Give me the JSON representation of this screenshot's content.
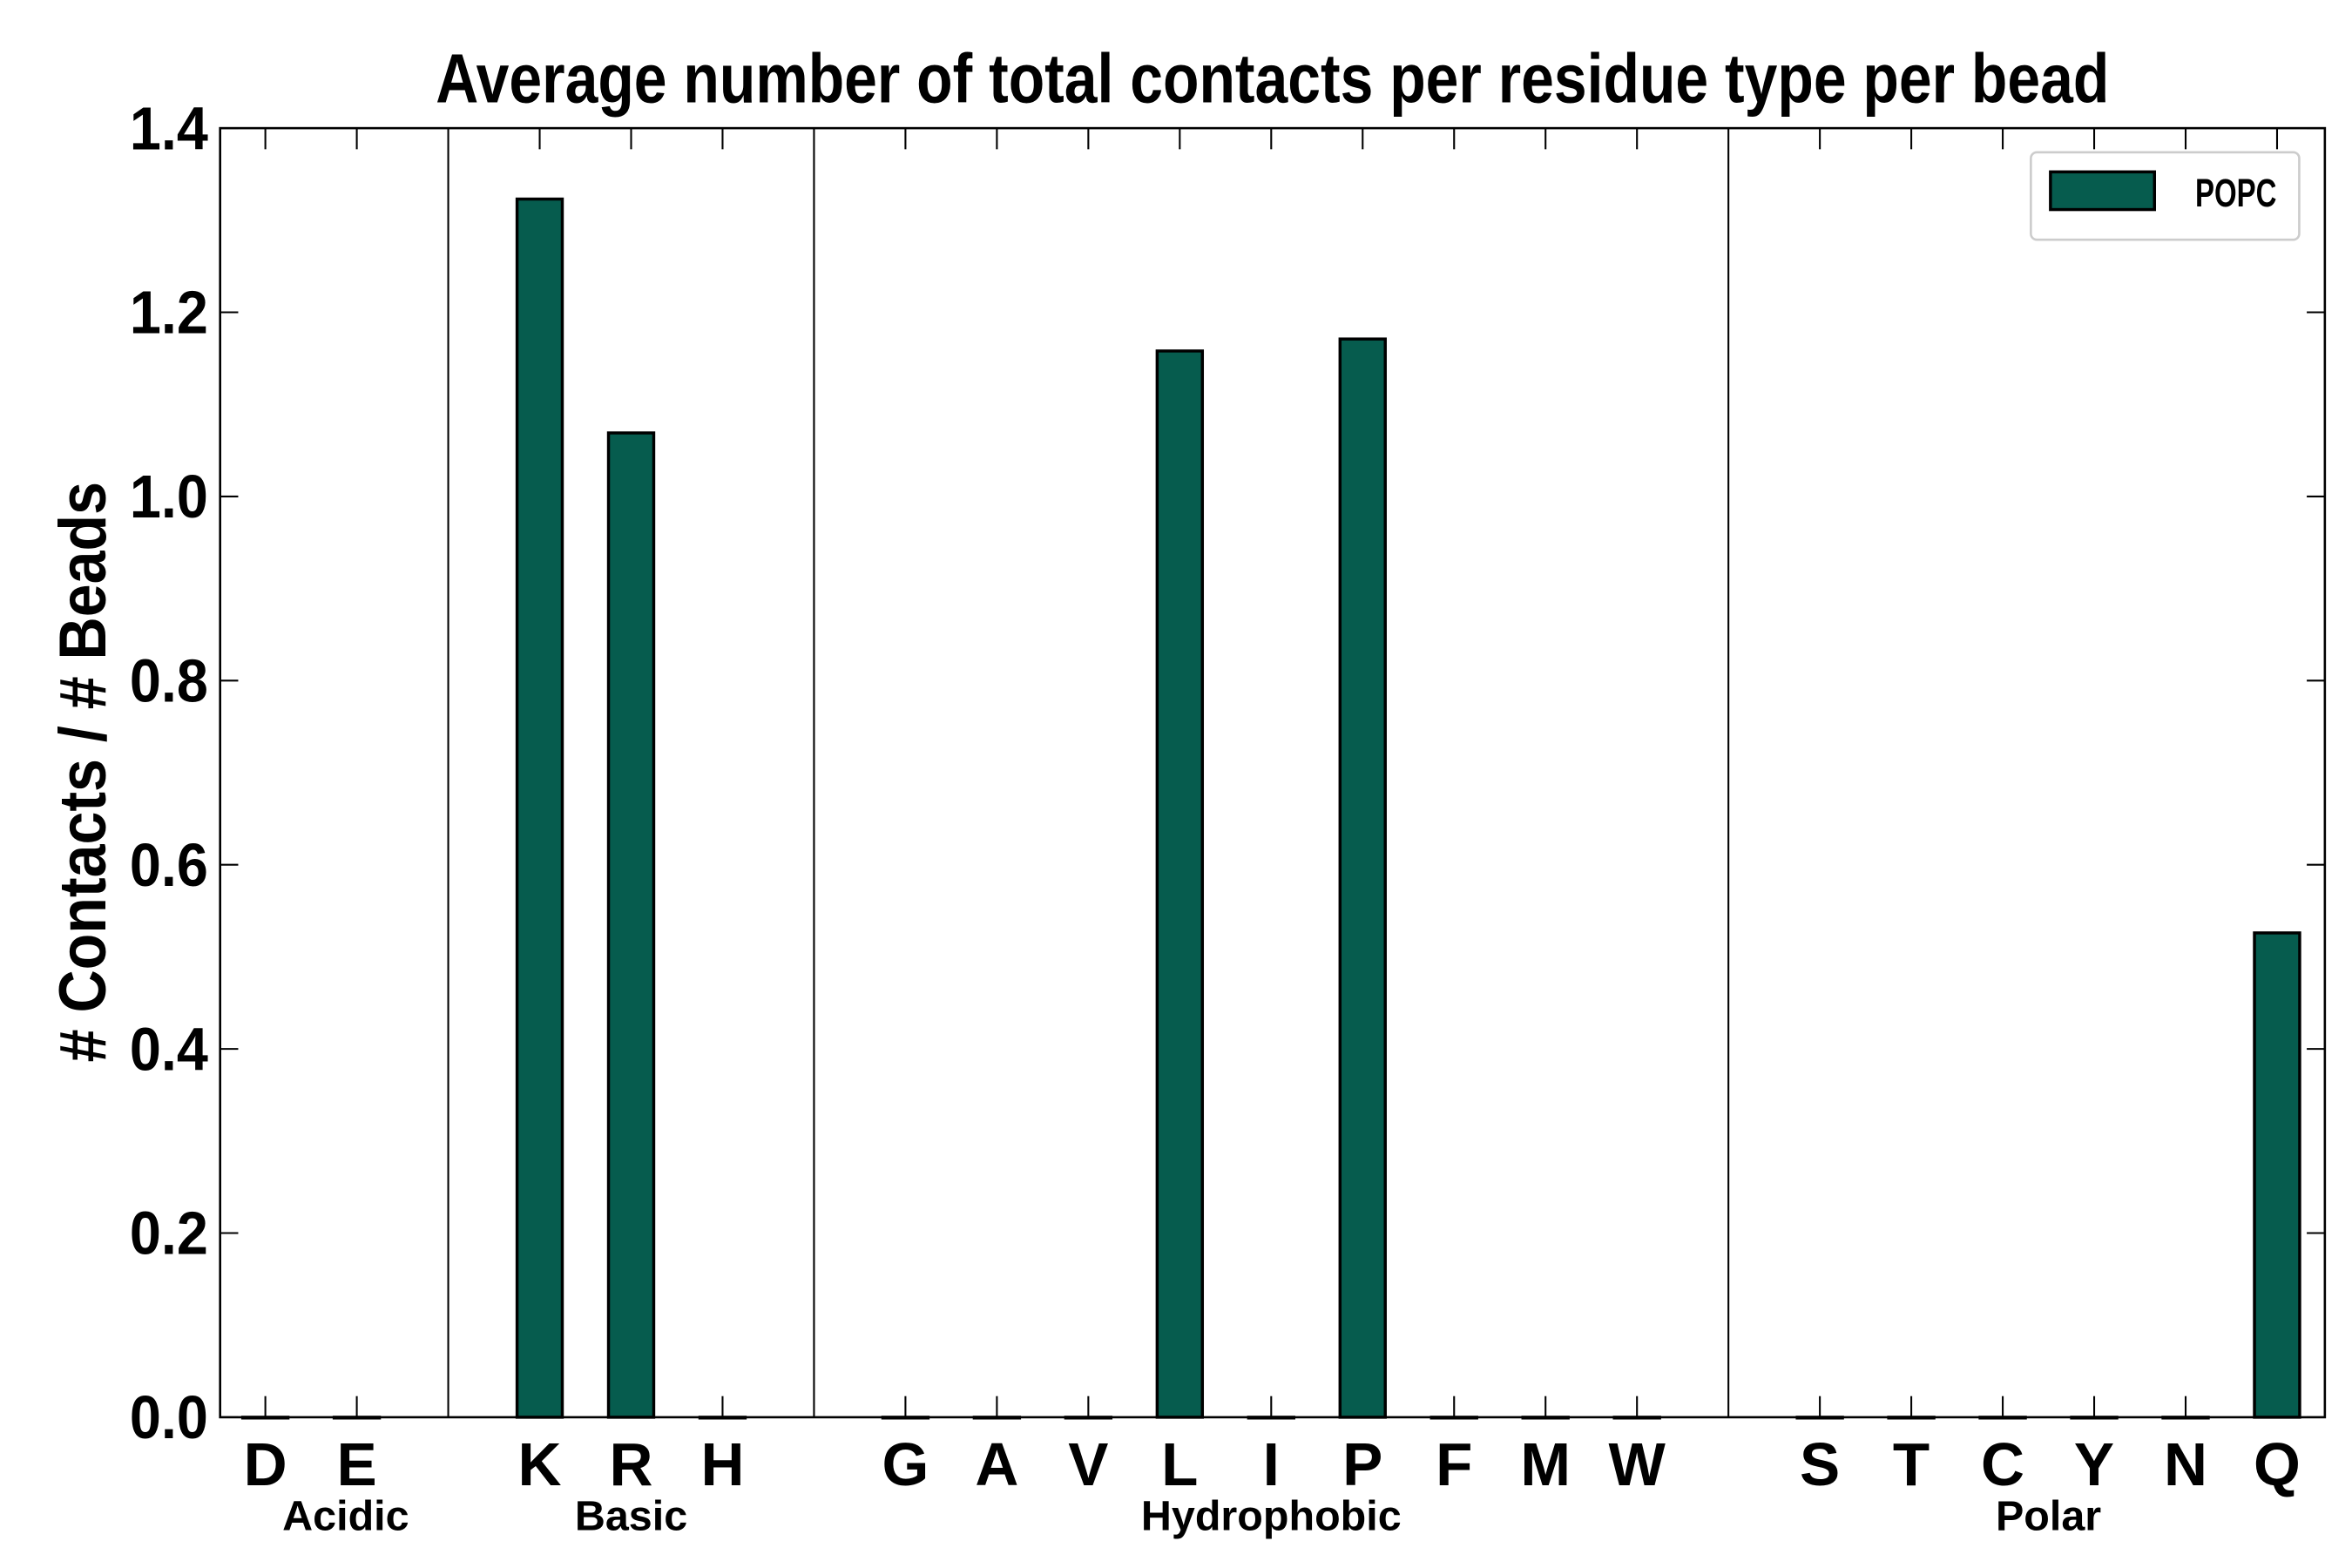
{
  "chart_data": {
    "type": "bar",
    "title": "Average number of total contacts per residue type per bead",
    "xlabel": "",
    "ylabel": "# Contacts / # Beads",
    "ylim": [
      0,
      1.4
    ],
    "yticks": [
      "0.0",
      "0.2",
      "0.4",
      "0.6",
      "0.8",
      "1.0",
      "1.2",
      "1.4"
    ],
    "categories": [
      "D",
      "E",
      "K",
      "R",
      "H",
      "G",
      "A",
      "V",
      "L",
      "I",
      "P",
      "F",
      "M",
      "W",
      "S",
      "T",
      "C",
      "Y",
      "N",
      "Q"
    ],
    "groups": [
      {
        "label": "Acidic",
        "members": [
          "D",
          "E"
        ]
      },
      {
        "label": "Basic",
        "members": [
          "K",
          "R",
          "H"
        ]
      },
      {
        "label": "Hydrophobic",
        "members": [
          "G",
          "A",
          "V",
          "L",
          "I",
          "P",
          "F",
          "M",
          "W"
        ]
      },
      {
        "label": "Polar",
        "members": [
          "S",
          "T",
          "C",
          "Y",
          "N",
          "Q"
        ]
      }
    ],
    "series": [
      {
        "name": "POPC",
        "color": "#065c4e",
        "values": [
          0,
          0,
          1.323,
          1.069,
          0,
          0,
          0,
          0,
          1.158,
          0,
          1.171,
          0,
          0,
          0,
          0,
          0,
          0,
          0,
          0,
          0.526
        ]
      }
    ],
    "legend": {
      "position": "top-right",
      "entries": [
        "POPC"
      ]
    },
    "grid": false
  }
}
